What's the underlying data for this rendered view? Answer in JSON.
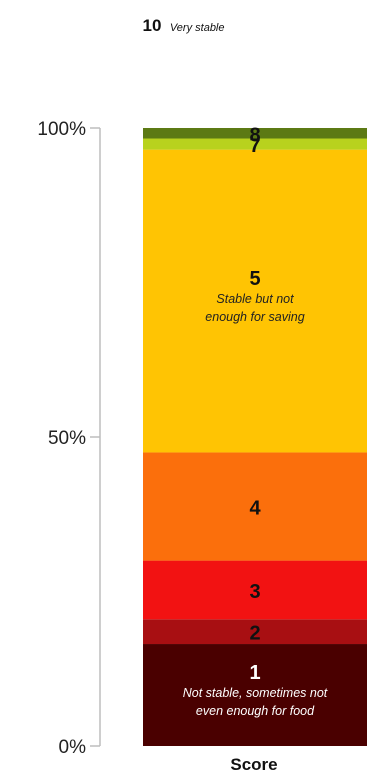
{
  "chart_data": {
    "type": "bar",
    "stacked": true,
    "categories": [
      "Score"
    ],
    "xlabel": "Score",
    "ylim": [
      0,
      100
    ],
    "y_ticks": [
      "0%",
      "50%",
      "100%"
    ],
    "top_annotation": {
      "score": "10",
      "description": "Very stable"
    },
    "series": [
      {
        "name": "1",
        "value": 16.5,
        "color": "#4a0000",
        "description": [
          "Not stable, sometimes not",
          "even enough for food"
        ]
      },
      {
        "name": "2",
        "value": 4.0,
        "color": "#a80f12",
        "description": []
      },
      {
        "name": "3",
        "value": 9.5,
        "color": "#f21212",
        "description": []
      },
      {
        "name": "4",
        "value": 17.5,
        "color": "#fb6f0c",
        "description": []
      },
      {
        "name": "5",
        "value": 49.0,
        "color": "#ffc403",
        "description": [
          "Stable but not",
          "enough for saving"
        ]
      },
      {
        "name": "7",
        "value": 1.8,
        "color": "#b8d21e",
        "description": []
      },
      {
        "name": "8",
        "value": 1.7,
        "color": "#5c7a14",
        "description": []
      }
    ]
  }
}
